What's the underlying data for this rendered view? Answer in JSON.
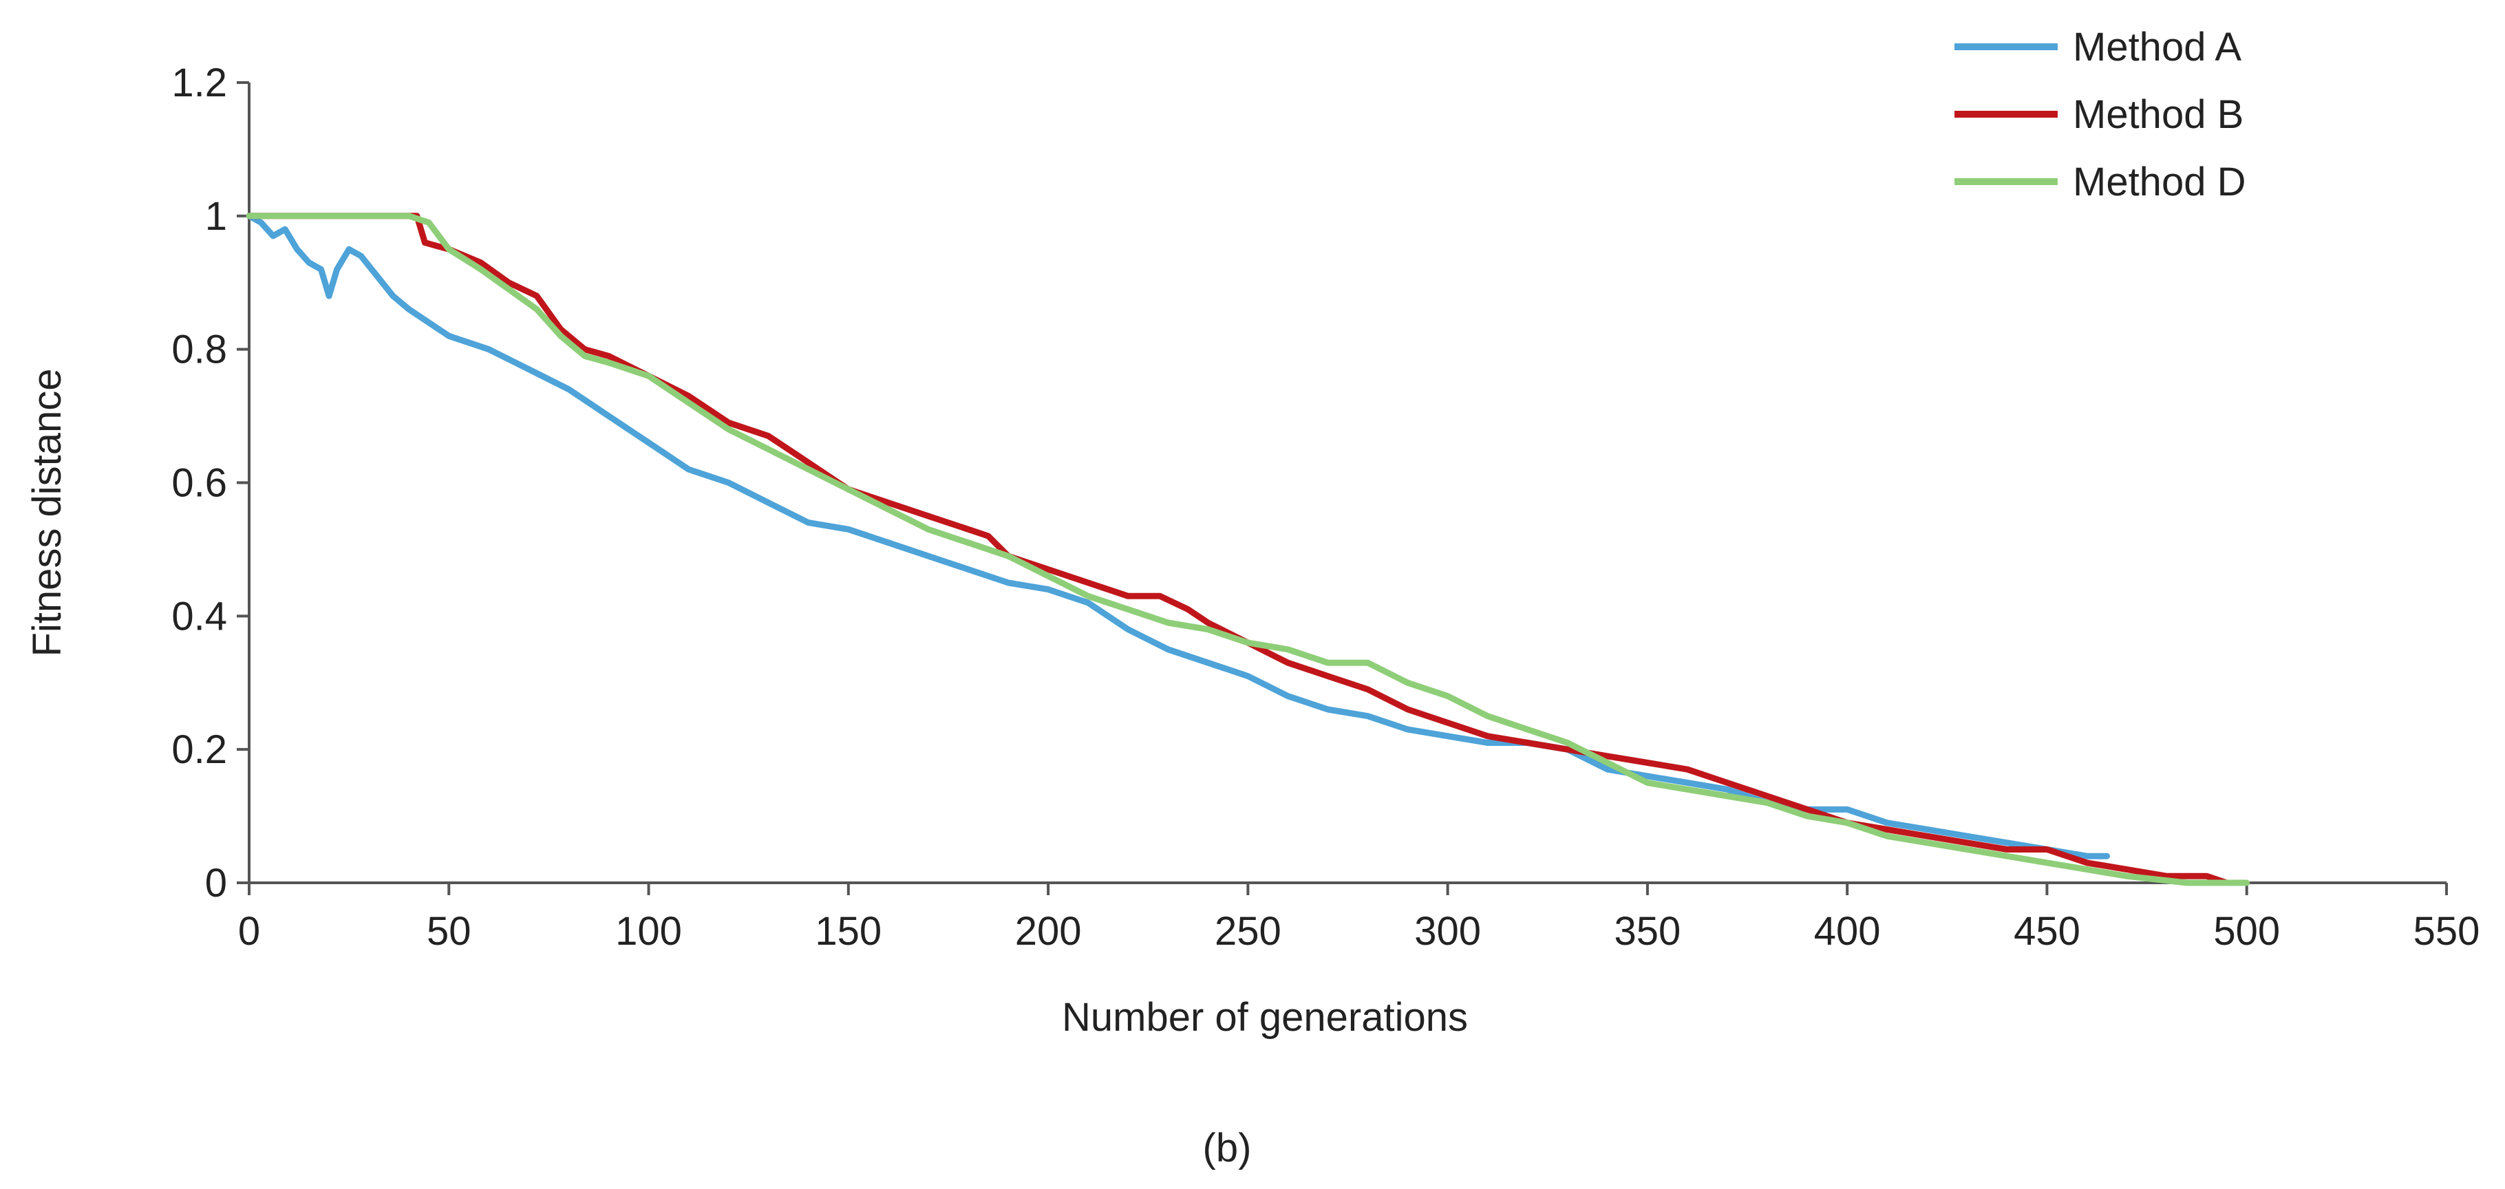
{
  "chart_data": {
    "type": "line",
    "title": "",
    "xlabel": "Number of generations",
    "ylabel": "Fitness distance",
    "caption": "(b)",
    "xlim": [
      0,
      550
    ],
    "ylim": [
      0,
      1.2
    ],
    "x_ticks": [
      0,
      50,
      100,
      150,
      200,
      250,
      300,
      350,
      400,
      450,
      500,
      550
    ],
    "y_ticks": [
      0,
      0.2,
      0.4,
      0.6,
      0.8,
      1,
      1.2
    ],
    "x_tick_labels": [
      "0",
      "50",
      "100",
      "150",
      "200",
      "250",
      "300",
      "350",
      "400",
      "450",
      "500",
      "550"
    ],
    "y_tick_labels": [
      "0",
      "0.2",
      "0.4",
      "0.6",
      "0.8",
      "1",
      "1.2"
    ],
    "grid": false,
    "legend_position": "top-right",
    "series": [
      {
        "name": "Method A",
        "color": "#4ea3d8",
        "points": [
          [
            0,
            1.0
          ],
          [
            3,
            0.99
          ],
          [
            6,
            0.97
          ],
          [
            9,
            0.98
          ],
          [
            12,
            0.95
          ],
          [
            15,
            0.93
          ],
          [
            18,
            0.92
          ],
          [
            20,
            0.88
          ],
          [
            22,
            0.92
          ],
          [
            25,
            0.95
          ],
          [
            28,
            0.94
          ],
          [
            32,
            0.91
          ],
          [
            36,
            0.88
          ],
          [
            40,
            0.86
          ],
          [
            45,
            0.84
          ],
          [
            50,
            0.82
          ],
          [
            60,
            0.8
          ],
          [
            70,
            0.77
          ],
          [
            80,
            0.74
          ],
          [
            90,
            0.7
          ],
          [
            100,
            0.66
          ],
          [
            110,
            0.62
          ],
          [
            120,
            0.6
          ],
          [
            130,
            0.57
          ],
          [
            140,
            0.54
          ],
          [
            150,
            0.53
          ],
          [
            160,
            0.51
          ],
          [
            170,
            0.49
          ],
          [
            180,
            0.47
          ],
          [
            190,
            0.45
          ],
          [
            200,
            0.44
          ],
          [
            210,
            0.42
          ],
          [
            220,
            0.38
          ],
          [
            230,
            0.35
          ],
          [
            240,
            0.33
          ],
          [
            250,
            0.31
          ],
          [
            260,
            0.28
          ],
          [
            270,
            0.26
          ],
          [
            280,
            0.25
          ],
          [
            290,
            0.23
          ],
          [
            300,
            0.22
          ],
          [
            310,
            0.21
          ],
          [
            320,
            0.21
          ],
          [
            330,
            0.2
          ],
          [
            340,
            0.17
          ],
          [
            350,
            0.16
          ],
          [
            360,
            0.15
          ],
          [
            370,
            0.14
          ],
          [
            380,
            0.12
          ],
          [
            390,
            0.11
          ],
          [
            400,
            0.11
          ],
          [
            410,
            0.09
          ],
          [
            420,
            0.08
          ],
          [
            430,
            0.07
          ],
          [
            440,
            0.06
          ],
          [
            450,
            0.05
          ],
          [
            460,
            0.04
          ],
          [
            465,
            0.04
          ]
        ]
      },
      {
        "name": "Method B",
        "color": "#c0161b",
        "points": [
          [
            0,
            1.0
          ],
          [
            20,
            1.0
          ],
          [
            42,
            1.0
          ],
          [
            44,
            0.96
          ],
          [
            50,
            0.95
          ],
          [
            58,
            0.93
          ],
          [
            65,
            0.9
          ],
          [
            72,
            0.88
          ],
          [
            78,
            0.83
          ],
          [
            84,
            0.8
          ],
          [
            90,
            0.79
          ],
          [
            100,
            0.76
          ],
          [
            110,
            0.73
          ],
          [
            120,
            0.69
          ],
          [
            130,
            0.67
          ],
          [
            140,
            0.63
          ],
          [
            150,
            0.59
          ],
          [
            160,
            0.57
          ],
          [
            170,
            0.55
          ],
          [
            180,
            0.53
          ],
          [
            185,
            0.52
          ],
          [
            190,
            0.49
          ],
          [
            200,
            0.47
          ],
          [
            210,
            0.45
          ],
          [
            220,
            0.43
          ],
          [
            228,
            0.43
          ],
          [
            235,
            0.41
          ],
          [
            240,
            0.39
          ],
          [
            250,
            0.36
          ],
          [
            260,
            0.33
          ],
          [
            270,
            0.31
          ],
          [
            280,
            0.29
          ],
          [
            290,
            0.26
          ],
          [
            300,
            0.24
          ],
          [
            310,
            0.22
          ],
          [
            320,
            0.21
          ],
          [
            330,
            0.2
          ],
          [
            340,
            0.19
          ],
          [
            350,
            0.18
          ],
          [
            360,
            0.17
          ],
          [
            370,
            0.15
          ],
          [
            380,
            0.13
          ],
          [
            390,
            0.11
          ],
          [
            400,
            0.09
          ],
          [
            410,
            0.08
          ],
          [
            420,
            0.07
          ],
          [
            430,
            0.06
          ],
          [
            440,
            0.05
          ],
          [
            450,
            0.05
          ],
          [
            460,
            0.03
          ],
          [
            470,
            0.02
          ],
          [
            480,
            0.01
          ],
          [
            490,
            0.01
          ],
          [
            495,
            0.0
          ]
        ]
      },
      {
        "name": "Method D",
        "color": "#8fce78",
        "points": [
          [
            0,
            1.0
          ],
          [
            20,
            1.0
          ],
          [
            40,
            1.0
          ],
          [
            45,
            0.99
          ],
          [
            50,
            0.95
          ],
          [
            58,
            0.92
          ],
          [
            65,
            0.89
          ],
          [
            72,
            0.86
          ],
          [
            78,
            0.82
          ],
          [
            84,
            0.79
          ],
          [
            90,
            0.78
          ],
          [
            100,
            0.76
          ],
          [
            110,
            0.72
          ],
          [
            120,
            0.68
          ],
          [
            130,
            0.65
          ],
          [
            140,
            0.62
          ],
          [
            150,
            0.59
          ],
          [
            160,
            0.56
          ],
          [
            170,
            0.53
          ],
          [
            180,
            0.51
          ],
          [
            190,
            0.49
          ],
          [
            200,
            0.46
          ],
          [
            210,
            0.43
          ],
          [
            220,
            0.41
          ],
          [
            230,
            0.39
          ],
          [
            240,
            0.38
          ],
          [
            250,
            0.36
          ],
          [
            260,
            0.35
          ],
          [
            270,
            0.33
          ],
          [
            280,
            0.33
          ],
          [
            290,
            0.3
          ],
          [
            300,
            0.28
          ],
          [
            310,
            0.25
          ],
          [
            320,
            0.23
          ],
          [
            330,
            0.21
          ],
          [
            340,
            0.18
          ],
          [
            350,
            0.15
          ],
          [
            360,
            0.14
          ],
          [
            370,
            0.13
          ],
          [
            380,
            0.12
          ],
          [
            390,
            0.1
          ],
          [
            400,
            0.09
          ],
          [
            410,
            0.07
          ],
          [
            420,
            0.06
          ],
          [
            430,
            0.05
          ],
          [
            440,
            0.04
          ],
          [
            450,
            0.03
          ],
          [
            460,
            0.02
          ],
          [
            470,
            0.01
          ],
          [
            485,
            0.0
          ],
          [
            500,
            0.0
          ]
        ]
      }
    ]
  }
}
